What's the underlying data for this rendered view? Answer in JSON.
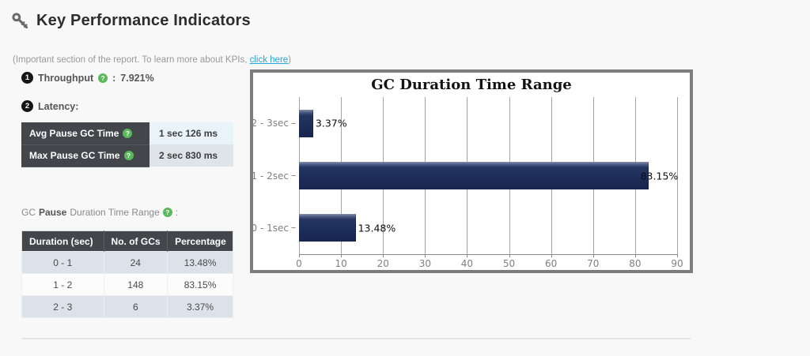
{
  "page": {
    "title": "Key Performance Indicators",
    "subtitle_prefix": "(Important section of the report. To learn more about KPIs, ",
    "subtitle_link": "click here",
    "subtitle_suffix": ")"
  },
  "icons": {
    "help_glyph": "?"
  },
  "kpi": {
    "throughput": {
      "number": "1",
      "label": "Throughput",
      "separator": ":",
      "value": "7.921%"
    },
    "latency": {
      "number": "2",
      "label": "Latency:"
    }
  },
  "latency_table": {
    "rows": [
      {
        "label": "Avg Pause GC Time",
        "value": "1 sec 126 ms"
      },
      {
        "label": "Max Pause GC Time",
        "value": "2 sec 830 ms"
      }
    ]
  },
  "duration_section": {
    "label_prefix": "GC",
    "label_bold": "Pause",
    "label_suffix": "Duration Time Range",
    "colon": ":"
  },
  "duration_table": {
    "headers": [
      "Duration (sec)",
      "No. of GCs",
      "Percentage"
    ],
    "rows": [
      [
        "0 - 1",
        "24",
        "13.48%"
      ],
      [
        "1 - 2",
        "148",
        "83.15%"
      ],
      [
        "2 - 3",
        "6",
        "3.37%"
      ]
    ]
  },
  "chart_data": {
    "type": "bar",
    "orientation": "horizontal",
    "title": "GC Duration Time Range",
    "categories": [
      "2 - 3sec",
      "1 - 2sec",
      "0 - 1sec"
    ],
    "values": [
      3.37,
      83.15,
      13.48
    ],
    "value_labels": [
      "3.37%",
      "83.15%",
      "13.48%"
    ],
    "xlim": [
      0,
      90
    ],
    "x_ticks": [
      0,
      10,
      20,
      30,
      40,
      50,
      60,
      70,
      80,
      90
    ],
    "grid": true,
    "legend": false,
    "bar_color": "#1c2c58"
  },
  "colors": {
    "link": "#29a5dc",
    "table_header_bg": "#43474c",
    "help_icon": "#5cb85c",
    "bar_navy": "#1c2c58",
    "chart_border": "#7d7d7d"
  }
}
